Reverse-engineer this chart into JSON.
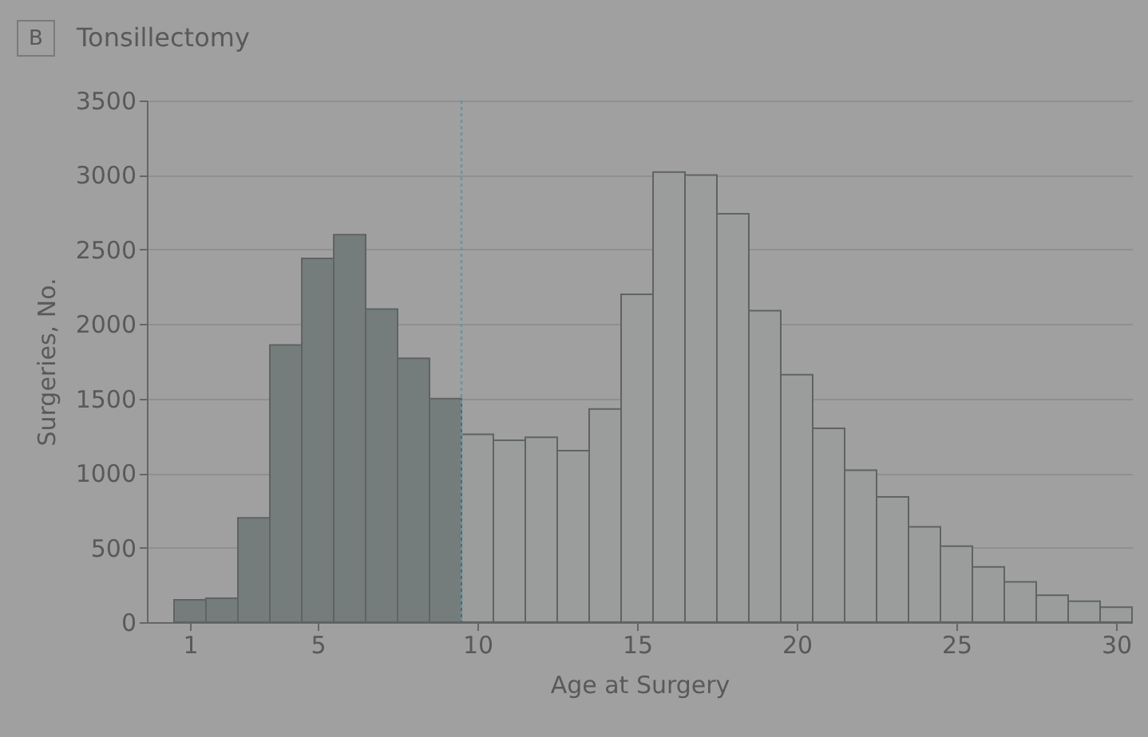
{
  "chart_data": {
    "type": "histogram",
    "title": "Tonsillectomy",
    "annotations": [
      "B"
    ],
    "xlabel": "Age at Surgery",
    "ylabel": "Surgeries, No.",
    "bins": [
      0.5,
      1.5,
      2.5,
      3.5,
      4.5,
      5.5,
      6.5,
      7.5,
      8.5,
      9.5,
      10.5,
      11.5,
      12.5,
      13.5,
      14.5,
      15.5,
      16.5,
      17.5,
      18.5,
      19.5,
      20.5,
      21.5,
      22.5,
      23.5,
      24.5,
      25.5,
      26.5,
      27.5,
      28.5,
      29.5,
      30.5
    ],
    "values": [
      150,
      160,
      700,
      1860,
      2440,
      2600,
      2100,
      1770,
      1500,
      1260,
      1220,
      1240,
      1150,
      1430,
      2200,
      3020,
      3000,
      2740,
      2090,
      1660,
      1300,
      1020,
      840,
      640,
      510,
      370,
      270,
      180,
      140,
      100
    ],
    "colors": [
      "#747c7c",
      "#747c7c",
      "#747c7c",
      "#747c7c",
      "#747c7c",
      "#747c7c",
      "#747c7c",
      "#747c7c",
      "#747c7c",
      "#9a9d9c",
      "#9a9d9c",
      "#9a9d9c",
      "#9a9d9c",
      "#9a9d9c",
      "#9a9d9c",
      "#9a9d9c",
      "#9a9d9c",
      "#9a9d9c",
      "#9a9d9c",
      "#9a9d9c",
      "#9a9d9c",
      "#9a9d9c",
      "#9a9d9c",
      "#9a9d9c",
      "#9a9d9c",
      "#9a9d9c",
      "#9a9d9c",
      "#9a9d9c",
      "#9a9d9c",
      "#9a9d9c"
    ],
    "xlim": [
      -0.35,
      30.5
    ],
    "xticks": [
      1,
      5,
      10,
      15,
      20,
      25,
      30
    ],
    "ylim": [
      0,
      3500
    ],
    "yticks": [
      0,
      500,
      1000,
      1500,
      2000,
      2500,
      3000,
      3500
    ],
    "ref_lines": [
      {
        "axis": "x",
        "value": 9.5,
        "label": null,
        "color": "#5a9aa8",
        "line_style": "dotted"
      }
    ],
    "grid": "y"
  }
}
